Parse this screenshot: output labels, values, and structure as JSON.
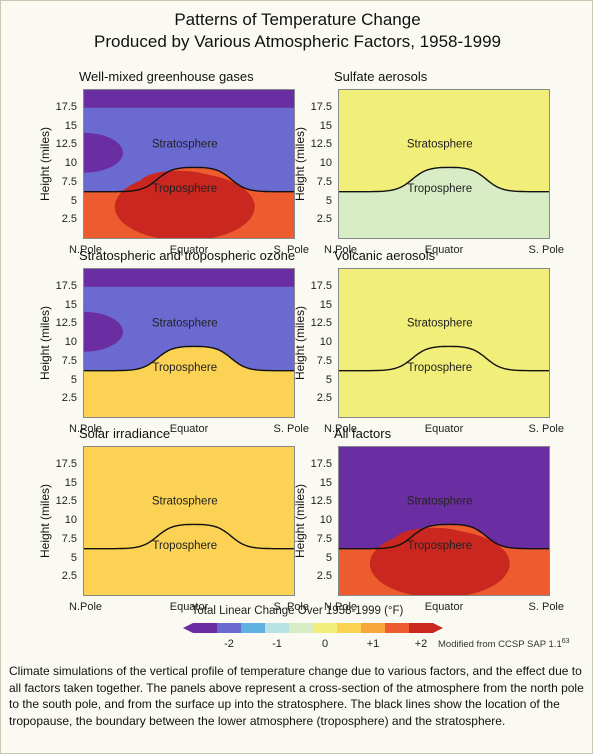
{
  "title_line1": "Patterns of Temperature Change",
  "title_line2": "Produced by Various Atmospheric Factors, 1958-1999",
  "ylabel": "Height (miles)",
  "ytick_labels": [
    "17.5",
    "15",
    "12.5",
    "10",
    "7.5",
    "5",
    "2.5"
  ],
  "xtick_labels": [
    "N.Pole",
    "Equator",
    "S. Pole"
  ],
  "stratosphere_label": "Stratosphere",
  "troposphere_label": "Troposphere",
  "colorbar_title": "Total Linear Change Over 1958-1999 (°F)",
  "colorbar_ticks": [
    "-2",
    "-1",
    "0",
    "+1",
    "+2"
  ],
  "colorbar_colors": [
    "#6a2ea2",
    "#6b6ad1",
    "#5fb1e2",
    "#b7e3e4",
    "#d8edc5",
    "#f2ee7a",
    "#fbd254",
    "#f7a63b",
    "#ec5c2f",
    "#c9271f"
  ],
  "credit": "Modified from CCSP SAP 1.1",
  "credit_sup": "63",
  "caption": "Climate simulations of the vertical profile of temperature change due to various factors, and the effect due to all factors taken together. The panels above represent a cross-section of the atmosphere from the north pole to the south pole, and from the surface up into the stratosphere. The black lines show the location of the tropopause, the boundary between the lower atmosphere (troposphere) and the stratosphere.",
  "chart_data": [
    {
      "type": "heatmap",
      "title": "Well-mixed greenhouse gases",
      "xlabel": "",
      "ylabel": "Height (miles)",
      "x_categories": [
        "N.Pole",
        "Equator",
        "S. Pole"
      ],
      "ylim": [
        0,
        20
      ],
      "units": "°F",
      "regions": [
        {
          "name": "stratosphere",
          "change": -1.5
        },
        {
          "name": "troposphere",
          "change": 1.5
        }
      ]
    },
    {
      "type": "heatmap",
      "title": "Sulfate aerosols",
      "xlabel": "",
      "ylabel": "Height (miles)",
      "x_categories": [
        "N.Pole",
        "Equator",
        "S. Pole"
      ],
      "ylim": [
        0,
        20
      ],
      "units": "°F",
      "regions": [
        {
          "name": "stratosphere",
          "change": 0.3
        },
        {
          "name": "troposphere",
          "change": -0.3
        }
      ]
    },
    {
      "type": "heatmap",
      "title": "Stratospheric and tropospheric ozone",
      "xlabel": "",
      "ylabel": "Height (miles)",
      "x_categories": [
        "N.Pole",
        "Equator",
        "S. Pole"
      ],
      "ylim": [
        0,
        20
      ],
      "units": "°F",
      "regions": [
        {
          "name": "stratosphere",
          "change": -1.5
        },
        {
          "name": "troposphere",
          "change": 0.4
        }
      ]
    },
    {
      "type": "heatmap",
      "title": "Volcanic aerosols",
      "xlabel": "",
      "ylabel": "Height (miles)",
      "x_categories": [
        "N.Pole",
        "Equator",
        "S. Pole"
      ],
      "ylim": [
        0,
        20
      ],
      "units": "°F",
      "regions": [
        {
          "name": "stratosphere",
          "change": 0.3
        },
        {
          "name": "troposphere",
          "change": 0.0
        }
      ]
    },
    {
      "type": "heatmap",
      "title": "Solar irradiance",
      "xlabel": "",
      "ylabel": "Height (miles)",
      "x_categories": [
        "N.Pole",
        "Equator",
        "S. Pole"
      ],
      "ylim": [
        0,
        20
      ],
      "units": "°F",
      "regions": [
        {
          "name": "stratosphere",
          "change": 0.4
        },
        {
          "name": "troposphere",
          "change": 0.4
        }
      ]
    },
    {
      "type": "heatmap",
      "title": "All factors",
      "xlabel": "Total Linear Change Over 1958-1999 (°F)",
      "ylabel": "Height (miles)",
      "x_categories": [
        "N.Pole",
        "Equator",
        "S. Pole"
      ],
      "ylim": [
        0,
        20
      ],
      "units": "°F",
      "colorbar_range": [
        -2,
        2
      ],
      "regions": [
        {
          "name": "stratosphere",
          "change": -1.6
        },
        {
          "name": "troposphere",
          "change": 1.3
        }
      ]
    }
  ]
}
